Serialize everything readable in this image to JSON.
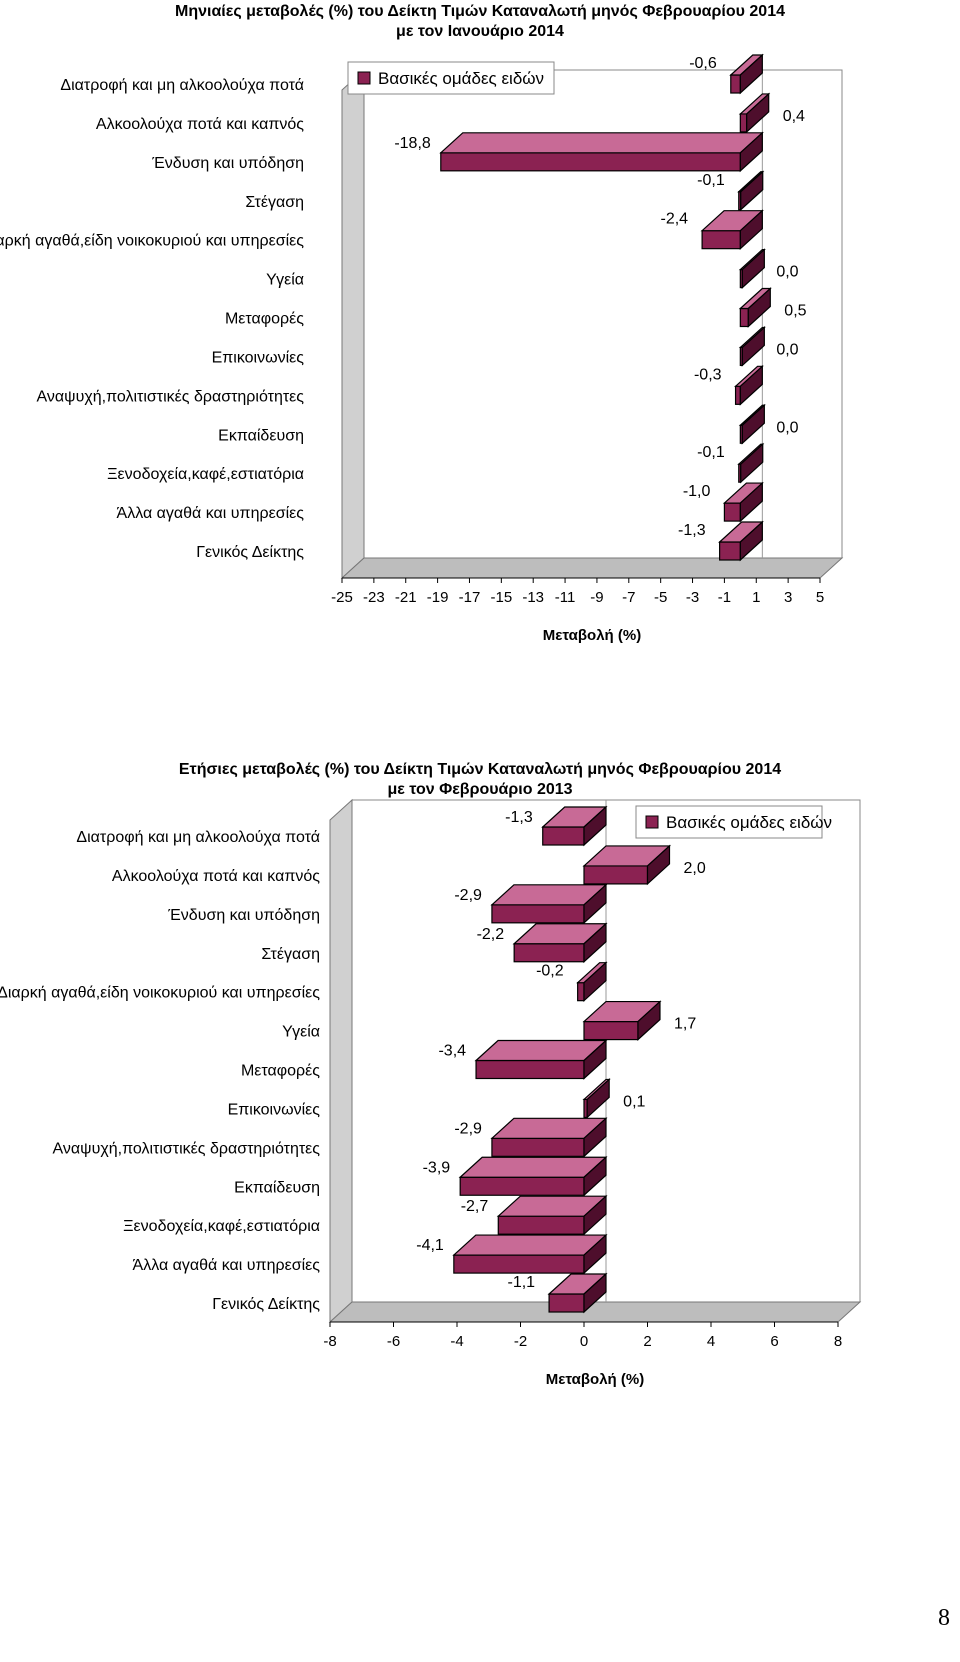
{
  "page_number": "8",
  "colors": {
    "bar_front": "#8B2252",
    "bar_top": "#C86A96",
    "bar_side": "#4E0E2C",
    "wall": "#D0D0D0",
    "floor": "#BDBDBD"
  },
  "chart_data": [
    {
      "type": "bar",
      "orientation": "horizontal",
      "title_line1": "Μηνιαίες μεταβολές (%) του Δείκτη Τιμών Καταναλωτή μηνός Φεβρουαρίου 2014",
      "title_line2": "με τον Ιανουάριο 2014",
      "xlabel": "Μεταβολή (%)",
      "legend": "Βασικές ομάδες ειδών",
      "legend_position": "top-left",
      "xlim": [
        -25,
        5
      ],
      "xticks": [
        -25,
        -23,
        -21,
        -19,
        -17,
        -15,
        -13,
        -11,
        -9,
        -7,
        -5,
        -3,
        -1,
        1,
        3,
        5
      ],
      "categories": [
        "Διατροφή και μη αλκοολούχα ποτά",
        "Αλκοολούχα ποτά και καπνός",
        "Ένδυση και υπόδηση",
        "Στέγαση",
        "Διαρκή αγαθά,είδη νοικοκυριού και υπηρεσίες",
        "Υγεία",
        "Μεταφορές",
        "Επικοινωνίες",
        "Αναψυχή,πολιτιστικές δραστηριότητες",
        "Εκπαίδευση",
        "Ξενοδοχεία,καφέ,εστιατόρια",
        "Άλλα αγαθά και υπηρεσίες",
        "Γενικός Δείκτης"
      ],
      "values": [
        -0.6,
        0.4,
        -18.8,
        -0.1,
        -2.4,
        0.0,
        0.5,
        0.0,
        -0.3,
        0.0,
        -0.1,
        -1.0,
        -1.3
      ],
      "data_labels": [
        "-0,6",
        "0,4",
        "-18,8",
        "-0,1",
        "-2,4",
        "0,0",
        "0,5",
        "0,0",
        "-0,3",
        "0,0",
        "-0,1",
        "-1,0",
        "-1,3"
      ]
    },
    {
      "type": "bar",
      "orientation": "horizontal",
      "title_line1": "Ετήσιες μεταβολές (%) του  Δείκτη Τιμών Καταναλωτή μηνός Φεβρουαρίου 2014",
      "title_line2": "με τον Φεβρουάριο 2013",
      "xlabel": "Μεταβολή (%)",
      "legend": "Βασικές ομάδες ειδών",
      "legend_position": "top-right",
      "xlim": [
        -8,
        8
      ],
      "xticks": [
        -8,
        -6,
        -4,
        -2,
        0,
        2,
        4,
        6,
        8
      ],
      "categories": [
        "Διατροφή και μη αλκοολούχα ποτά",
        "Αλκοολούχα ποτά και καπνός",
        "Ένδυση και υπόδηση",
        "Στέγαση",
        "Διαρκή αγαθά,είδη νοικοκυριού και υπηρεσίες",
        "Υγεία",
        "Μεταφορές",
        "Επικοινωνίες",
        "Αναψυχή,πολιτιστικές δραστηριότητες",
        "Εκπαίδευση",
        "Ξενοδοχεία,καφέ,εστιατόρια",
        "Άλλα αγαθά και υπηρεσίες",
        "Γενικός Δείκτης"
      ],
      "values": [
        -1.3,
        2.0,
        -2.9,
        -2.2,
        -0.2,
        1.7,
        -3.4,
        0.1,
        -2.9,
        -3.9,
        -2.7,
        -4.1,
        -1.1
      ],
      "data_labels": [
        "-1,3",
        "2,0",
        "-2,9",
        "-2,2",
        "-0,2",
        "1,7",
        "-3,4",
        "0,1",
        "-2,9",
        "-3,9",
        "-2,7",
        "-4,1",
        "-1,1"
      ]
    }
  ]
}
